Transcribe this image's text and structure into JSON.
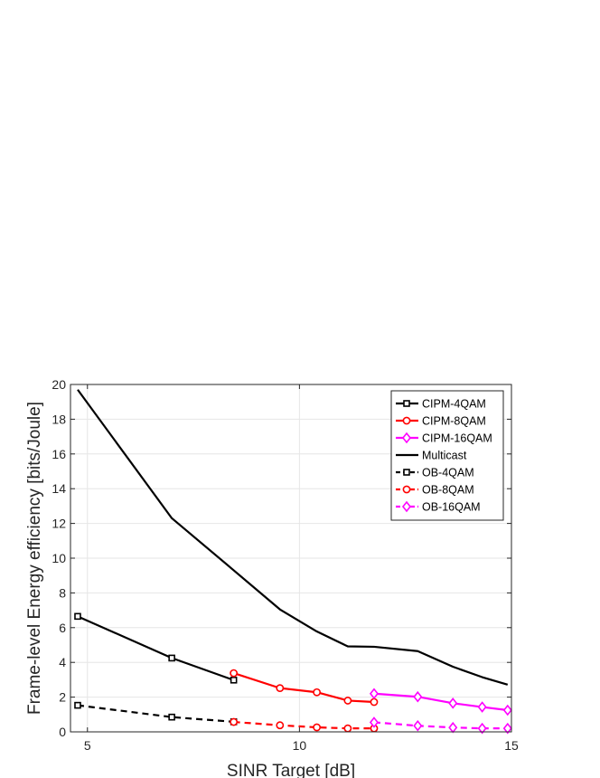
{
  "chart_data": {
    "type": "line",
    "xlabel": "SINR Target [dB]",
    "ylabel": "Frame-level Energy efficiency [bits/Joule]",
    "xlim": [
      4.6,
      15
    ],
    "ylim": [
      0,
      20
    ],
    "xticks": [
      5,
      10,
      15
    ],
    "yticks": [
      0,
      2,
      4,
      6,
      8,
      10,
      12,
      14,
      16,
      18,
      20
    ],
    "grid": true,
    "legend_position": "top-right",
    "series": [
      {
        "name": "CIPM-4QAM",
        "color": "#000000",
        "dash": "solid",
        "marker": "square",
        "x": [
          4.77,
          6.99,
          8.45
        ],
        "y": [
          6.65,
          4.25,
          2.98
        ]
      },
      {
        "name": "CIPM-8QAM",
        "color": "#ff0000",
        "dash": "solid",
        "marker": "circle",
        "x": [
          8.45,
          9.54,
          10.41,
          11.14,
          11.76
        ],
        "y": [
          3.38,
          2.52,
          2.28,
          1.8,
          1.72
        ]
      },
      {
        "name": "CIPM-16QAM",
        "color": "#ff00ff",
        "dash": "solid",
        "marker": "diamond",
        "x": [
          11.76,
          12.79,
          13.62,
          14.31,
          14.91
        ],
        "y": [
          2.2,
          2.02,
          1.65,
          1.43,
          1.25
        ]
      },
      {
        "name": "Multicast",
        "color": "#000000",
        "dash": "solid",
        "marker": "none",
        "x": [
          4.77,
          6.99,
          8.45,
          9.54,
          10.41,
          11.14,
          11.76,
          12.79,
          13.62,
          14.31,
          14.91
        ],
        "y": [
          19.7,
          12.3,
          9.3,
          7.05,
          5.78,
          4.92,
          4.9,
          4.65,
          3.75,
          3.15,
          2.72
        ]
      },
      {
        "name": "OB-4QAM",
        "color": "#000000",
        "dash": "dashed",
        "marker": "square",
        "x": [
          4.77,
          6.99,
          8.45
        ],
        "y": [
          1.53,
          0.85,
          0.58
        ]
      },
      {
        "name": "OB-8QAM",
        "color": "#ff0000",
        "dash": "dashed",
        "marker": "circle",
        "x": [
          8.45,
          9.54,
          10.41,
          11.14,
          11.76
        ],
        "y": [
          0.57,
          0.38,
          0.26,
          0.2,
          0.2
        ]
      },
      {
        "name": "OB-16QAM",
        "color": "#ff00ff",
        "dash": "dashed",
        "marker": "diamond",
        "x": [
          11.76,
          12.79,
          13.62,
          14.31,
          14.91
        ],
        "y": [
          0.55,
          0.35,
          0.25,
          0.2,
          0.2
        ]
      }
    ]
  }
}
